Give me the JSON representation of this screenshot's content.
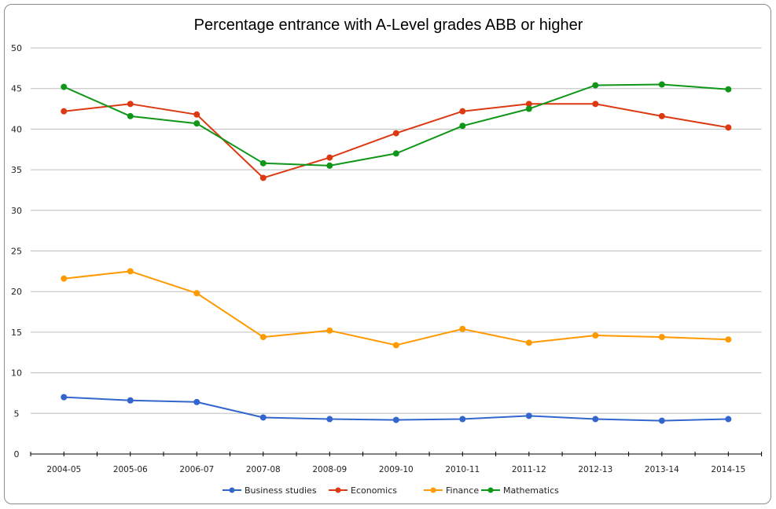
{
  "chart_data": {
    "type": "line",
    "title": "Percentage entrance with A-Level grades ABB or higher",
    "xlabel": "",
    "ylabel": "",
    "ylim": [
      0,
      50
    ],
    "yticks": [
      0,
      5,
      10,
      15,
      20,
      25,
      30,
      35,
      40,
      45,
      50
    ],
    "grid": true,
    "legend_position": "bottom",
    "categories": [
      "2004-05",
      "2005-06",
      "2006-07",
      "2007-08",
      "2008-09",
      "2009-10",
      "2010-11",
      "2011-12",
      "2012-13",
      "2013-14",
      "2014-15"
    ],
    "series": [
      {
        "name": "Business studies",
        "color": "#3366cc",
        "values": [
          7.0,
          6.6,
          6.4,
          4.5,
          4.3,
          4.2,
          4.3,
          4.7,
          4.3,
          4.1,
          4.3
        ]
      },
      {
        "name": "Economics",
        "color": "#dc3912",
        "values": [
          42.2,
          43.1,
          41.8,
          34.0,
          36.5,
          39.5,
          42.2,
          43.1,
          43.1,
          41.6,
          40.2
        ]
      },
      {
        "name": "Finance",
        "color": "#ff9900",
        "values": [
          21.6,
          22.5,
          19.8,
          14.4,
          15.2,
          13.4,
          15.4,
          13.7,
          14.6,
          14.4,
          14.1
        ]
      },
      {
        "name": "Mathematics",
        "color": "#109618",
        "values": [
          45.2,
          41.6,
          40.7,
          35.8,
          35.5,
          37.0,
          40.4,
          42.5,
          45.4,
          45.5,
          44.9
        ]
      }
    ]
  }
}
